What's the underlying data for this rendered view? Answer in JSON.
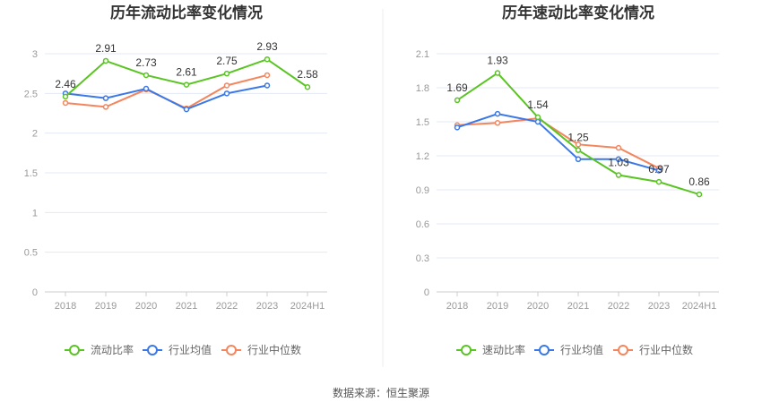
{
  "source_text": "数据来源：恒生聚源",
  "colors": {
    "main": "#5ac423",
    "avg": "#3b78e7",
    "median": "#f4855c",
    "grid": "#e3e8f5"
  },
  "chart_data": [
    {
      "type": "line",
      "title": "历年流动比率变化情况",
      "categories": [
        "2018",
        "2019",
        "2020",
        "2021",
        "2022",
        "2023",
        "2024H1"
      ],
      "ylim": [
        0,
        3
      ],
      "yticks": [
        "0",
        "0.5",
        "1",
        "1.5",
        "2",
        "2.5",
        "3"
      ],
      "grid": true,
      "legend_placement": "bottom",
      "series": [
        {
          "name": "流动比率",
          "values": [
            2.46,
            2.91,
            2.73,
            2.61,
            2.75,
            2.93,
            2.58
          ],
          "labels": [
            "2.46",
            "2.91",
            "2.73",
            "2.61",
            "2.75",
            "2.93",
            "2.58"
          ]
        },
        {
          "name": "行业均值",
          "values": [
            2.5,
            2.44,
            2.56,
            2.3,
            2.5,
            2.6,
            null
          ]
        },
        {
          "name": "行业中位数",
          "values": [
            2.38,
            2.33,
            2.55,
            2.31,
            2.6,
            2.73,
            null
          ]
        }
      ]
    },
    {
      "type": "line",
      "title": "历年速动比率变化情况",
      "categories": [
        "2018",
        "2019",
        "2020",
        "2021",
        "2022",
        "2023",
        "2024H1"
      ],
      "ylim": [
        0,
        2.1
      ],
      "yticks": [
        "0",
        "0.3",
        "0.6",
        "0.9",
        "1.2",
        "1.5",
        "1.8",
        "2.1"
      ],
      "grid": true,
      "legend_placement": "bottom",
      "series": [
        {
          "name": "速动比率",
          "values": [
            1.69,
            1.93,
            1.54,
            1.25,
            1.03,
            0.97,
            0.86
          ],
          "labels": [
            "1.69",
            "1.93",
            "1.54",
            "1.25",
            "1.03",
            "0.97",
            "0.86"
          ]
        },
        {
          "name": "行业均值",
          "values": [
            1.45,
            1.57,
            1.5,
            1.17,
            1.17,
            1.07,
            null
          ]
        },
        {
          "name": "行业中位数",
          "values": [
            1.47,
            1.49,
            1.53,
            1.3,
            1.27,
            1.09,
            null
          ]
        }
      ]
    }
  ]
}
